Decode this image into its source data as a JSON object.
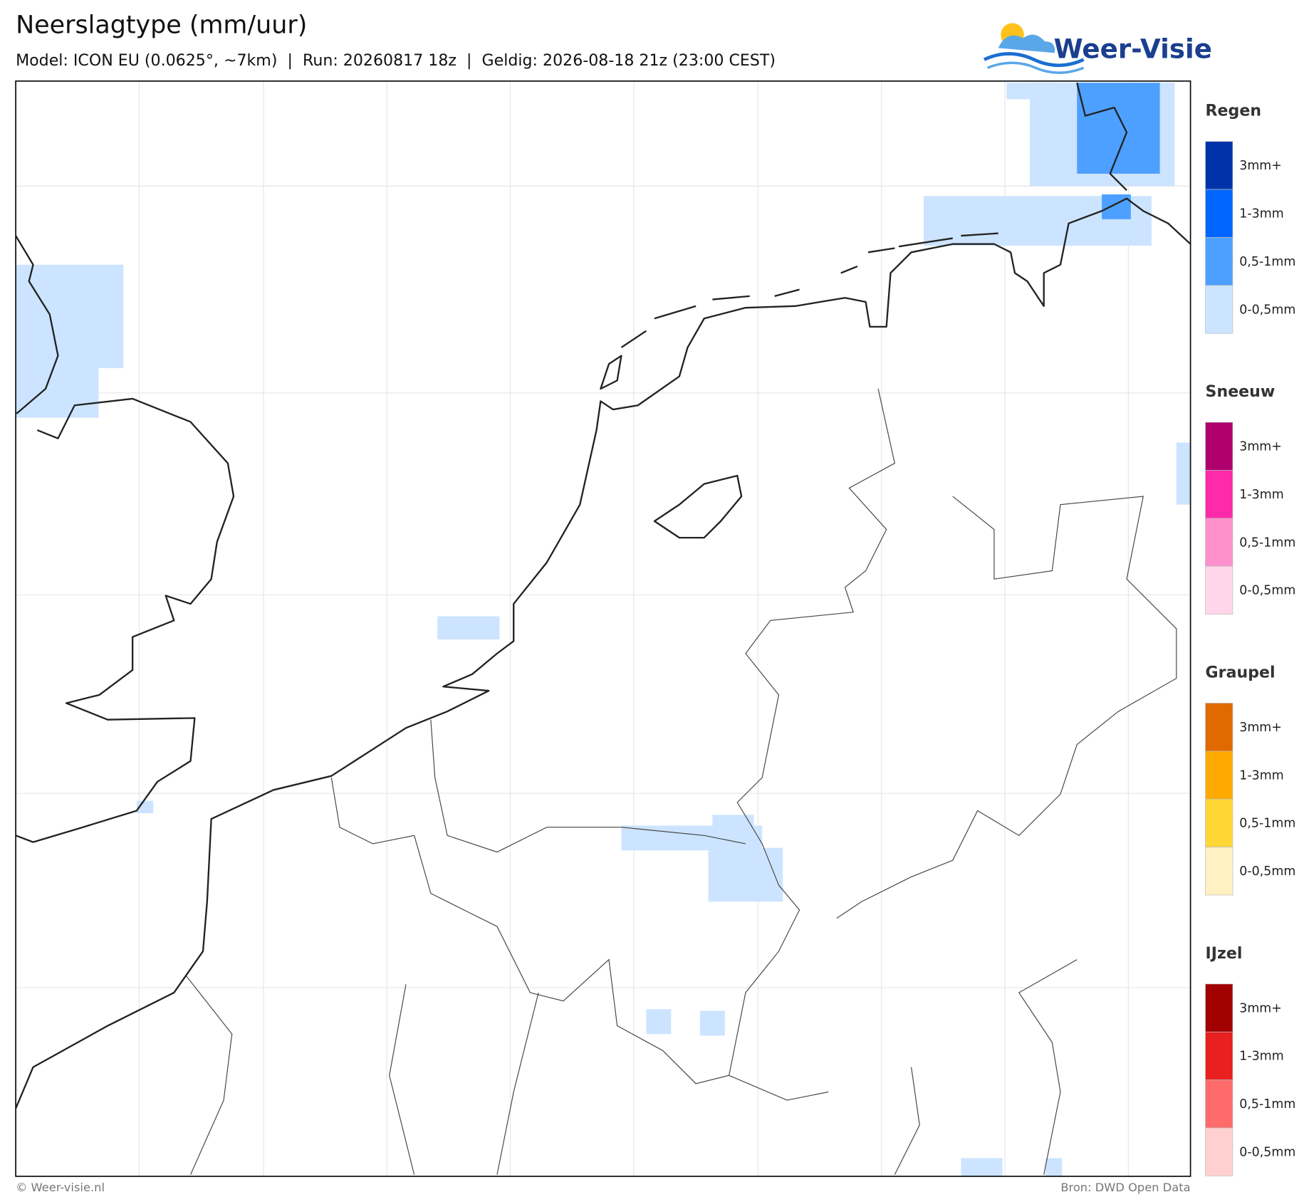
{
  "header": {
    "title": "Neerslagtype (mm/uur)",
    "subtitle": "Model: ICON EU (0.0625°, ~7km)  |  Run: 20260817 18z  |  Geldig: 2026-08-18 21z (23:00 CEST)"
  },
  "logo": {
    "text": "Weer-Visie"
  },
  "legend": [
    {
      "title": "Regen",
      "levels": [
        {
          "label": "3mm+",
          "color": "#0033aa"
        },
        {
          "label": "1-3mm",
          "color": "#0066ff"
        },
        {
          "label": "0,5-1mm",
          "color": "#4da0ff"
        },
        {
          "label": "0-0,5mm",
          "color": "#cce4ff"
        }
      ]
    },
    {
      "title": "Sneeuw",
      "levels": [
        {
          "label": "3mm+",
          "color": "#b0006e"
        },
        {
          "label": "1-3mm",
          "color": "#ff2aa8"
        },
        {
          "label": "0,5-1mm",
          "color": "#ff90cc"
        },
        {
          "label": "0-0,5mm",
          "color": "#ffd6ea"
        }
      ]
    },
    {
      "title": "Graupel",
      "levels": [
        {
          "label": "3mm+",
          "color": "#e06a00"
        },
        {
          "label": "1-3mm",
          "color": "#ffaa00"
        },
        {
          "label": "0,5-1mm",
          "color": "#ffd633"
        },
        {
          "label": "0-0,5mm",
          "color": "#fff1c2"
        }
      ]
    },
    {
      "title": "IJzel",
      "levels": [
        {
          "label": "3mm+",
          "color": "#a00000"
        },
        {
          "label": "1-3mm",
          "color": "#e82020"
        },
        {
          "label": "0,5-1mm",
          "color": "#ff6b6b"
        },
        {
          "label": "0-0,5mm",
          "color": "#ffd0d0"
        }
      ]
    }
  ],
  "footer": {
    "left": "© Weer-visie.nl",
    "right": "Bron: DWD Open Data"
  }
}
